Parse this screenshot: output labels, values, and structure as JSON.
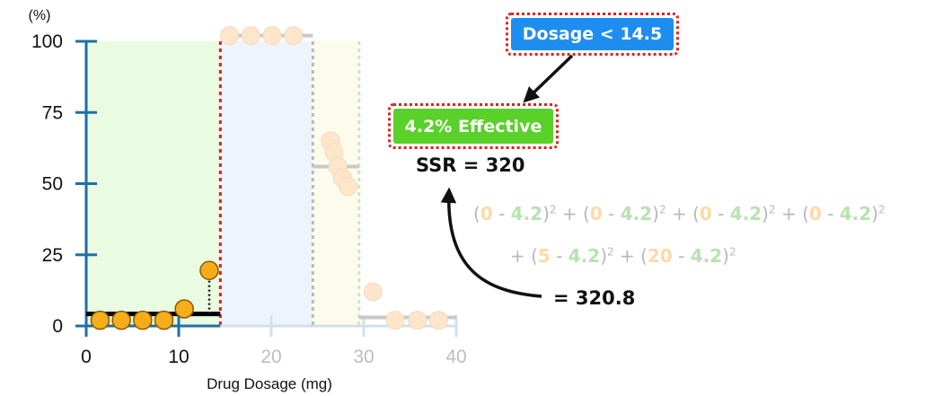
{
  "chart_data": {
    "type": "scatter",
    "xlabel": "Drug Dosage (mg)",
    "ylabel": "(%)",
    "xlim": [
      0,
      40
    ],
    "ylim": [
      0,
      100
    ],
    "x_ticks": [
      "0",
      "10",
      "20",
      "30",
      "40"
    ],
    "y_ticks": [
      "0",
      "25",
      "50",
      "75",
      "100"
    ],
    "split_thresholds": [
      14.5,
      24.5,
      29.5
    ],
    "regions": [
      {
        "x_range": [
          0,
          14.5
        ],
        "color": "#e9fbe1",
        "highlighted": true
      },
      {
        "x_range": [
          14.5,
          24.5
        ],
        "color": "#eef4fb",
        "highlighted": false
      },
      {
        "x_range": [
          24.5,
          29.5
        ],
        "color": "#fdfbec",
        "highlighted": false
      }
    ],
    "points": [
      {
        "x": 1.5,
        "y": 2,
        "highlighted": true
      },
      {
        "x": 3.8,
        "y": 2,
        "highlighted": true
      },
      {
        "x": 6.1,
        "y": 2,
        "highlighted": true
      },
      {
        "x": 8.4,
        "y": 2,
        "highlighted": true
      },
      {
        "x": 10.6,
        "y": 6,
        "highlighted": true
      },
      {
        "x": 13.3,
        "y": 19.5,
        "highlighted": true
      },
      {
        "x": 15.5,
        "y": 102,
        "highlighted": false
      },
      {
        "x": 17.8,
        "y": 102,
        "highlighted": false
      },
      {
        "x": 20.1,
        "y": 102,
        "highlighted": false
      },
      {
        "x": 22.4,
        "y": 102,
        "highlighted": false
      },
      {
        "x": 26.4,
        "y": 65,
        "highlighted": false
      },
      {
        "x": 26.8,
        "y": 61,
        "highlighted": false
      },
      {
        "x": 27.2,
        "y": 56,
        "highlighted": false
      },
      {
        "x": 27.7,
        "y": 52,
        "highlighted": false
      },
      {
        "x": 28.3,
        "y": 49,
        "highlighted": false
      },
      {
        "x": 31.0,
        "y": 12,
        "highlighted": false
      },
      {
        "x": 33.4,
        "y": 2,
        "highlighted": false
      },
      {
        "x": 35.8,
        "y": 2,
        "highlighted": false
      },
      {
        "x": 38.1,
        "y": 2,
        "highlighted": false
      }
    ],
    "means": [
      {
        "x_range": [
          0,
          14.5
        ],
        "y": 4.2,
        "color": "#000000"
      },
      {
        "x_range": [
          14.5,
          24.5
        ],
        "y": 102,
        "color": "#c8c8c8"
      },
      {
        "x_range": [
          24.5,
          29.5
        ],
        "y": 56,
        "color": "#c8c8c8"
      },
      {
        "x_range": [
          29.5,
          40
        ],
        "y": 3,
        "color": "#c8c8c8"
      }
    ],
    "residual": {
      "x": 13.3,
      "y_from": 4.2,
      "y_to": 19.5
    }
  },
  "annotations": {
    "rule_box": "Dosage < 14.5",
    "rule_color": "#1e8df0",
    "leaf_box": "4.2% Effective",
    "leaf_color": "#5ad02a",
    "ssr_label": "SSR = 320",
    "result_label": "= 320.8",
    "eq_line1": [
      {
        "t": "(",
        "c": "n"
      },
      {
        "t": "0",
        "c": "o"
      },
      {
        "t": " - ",
        "c": "n"
      },
      {
        "t": "4.2",
        "c": "g"
      },
      {
        "t": ")",
        "c": "n"
      },
      {
        "t": "2",
        "c": "s"
      },
      {
        "t": " + (",
        "c": "n"
      },
      {
        "t": "0",
        "c": "o"
      },
      {
        "t": " - ",
        "c": "n"
      },
      {
        "t": "4.2",
        "c": "g"
      },
      {
        "t": ")",
        "c": "n"
      },
      {
        "t": "2",
        "c": "s"
      },
      {
        "t": " + (",
        "c": "n"
      },
      {
        "t": "0",
        "c": "o"
      },
      {
        "t": " - ",
        "c": "n"
      },
      {
        "t": "4.2",
        "c": "g"
      },
      {
        "t": ")",
        "c": "n"
      },
      {
        "t": "2",
        "c": "s"
      },
      {
        "t": " + (",
        "c": "n"
      },
      {
        "t": "0",
        "c": "o"
      },
      {
        "t": " - ",
        "c": "n"
      },
      {
        "t": "4.2",
        "c": "g"
      },
      {
        "t": ")",
        "c": "n"
      },
      {
        "t": "2",
        "c": "s"
      }
    ],
    "eq_line2": [
      {
        "t": "+ (",
        "c": "n"
      },
      {
        "t": "5",
        "c": "o"
      },
      {
        "t": " - ",
        "c": "n"
      },
      {
        "t": "4.2",
        "c": "g"
      },
      {
        "t": ")",
        "c": "n"
      },
      {
        "t": "2",
        "c": "s"
      },
      {
        "t": " + (",
        "c": "n"
      },
      {
        "t": "20",
        "c": "o"
      },
      {
        "t": " - ",
        "c": "n"
      },
      {
        "t": "4.2",
        "c": "g"
      },
      {
        "t": ")",
        "c": "n"
      },
      {
        "t": "2",
        "c": "s"
      }
    ]
  }
}
